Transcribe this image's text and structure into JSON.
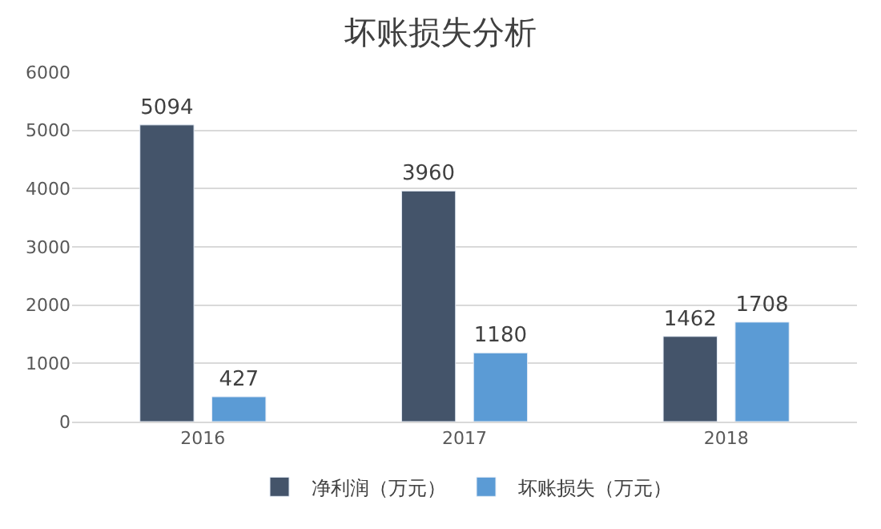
{
  "chart_data": {
    "type": "bar",
    "title": "坏账损失分析",
    "categories": [
      "2016",
      "2017",
      "2018"
    ],
    "series": [
      {
        "name": "净利润（万元）",
        "color": "#44546a",
        "values": [
          5094,
          3960,
          1462
        ]
      },
      {
        "name": "坏账损失（万元）",
        "color": "#5b9bd5",
        "values": [
          427,
          1180,
          1708
        ]
      }
    ],
    "ylim": [
      0,
      6000
    ],
    "yticks": [
      0,
      1000,
      2000,
      3000,
      4000,
      5000,
      6000
    ],
    "grid": "y",
    "legend": "bottom",
    "data_labels": true
  }
}
